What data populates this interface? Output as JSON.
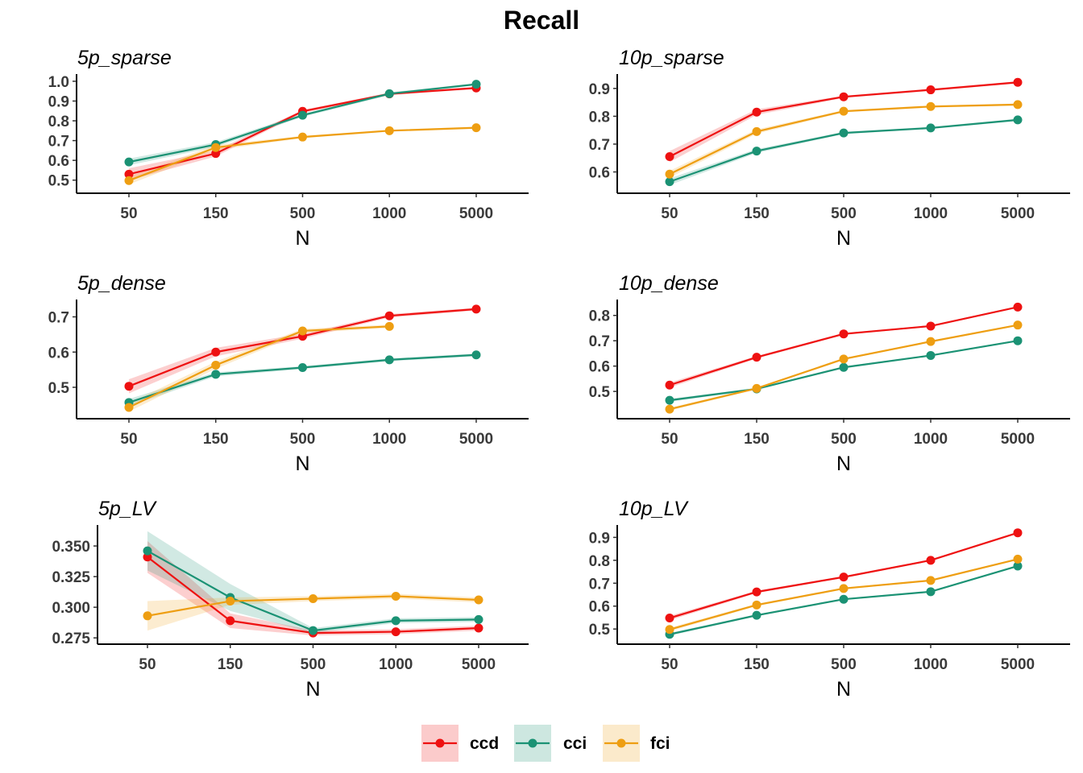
{
  "title": "Recall",
  "legend": {
    "position": "bottom",
    "entries": [
      {
        "name": "ccd",
        "color": "#EE1111"
      },
      {
        "name": "cci",
        "color": "#1B9274"
      },
      {
        "name": "fci",
        "color": "#EE9E12"
      }
    ]
  },
  "chart_data": [
    {
      "type": "line",
      "title": "5p_sparse",
      "xlabel": "N",
      "ylabel": "",
      "categories": [
        "50",
        "150",
        "500",
        "1000",
        "5000"
      ],
      "ylim": [
        0.45,
        1.02
      ],
      "yticks": [
        0.5,
        0.6,
        0.7,
        0.8,
        0.9,
        1.0
      ],
      "ytick_labels": [
        "0.5",
        "0.6",
        "0.7",
        "0.8",
        "0.9",
        "1.0"
      ],
      "grid": false,
      "series": [
        {
          "name": "ccd",
          "values": [
            0.53,
            0.635,
            0.848,
            0.936,
            0.966
          ],
          "lower": [
            0.5,
            0.62,
            0.84,
            0.93,
            0.96
          ],
          "upper": [
            0.56,
            0.65,
            0.855,
            0.942,
            0.972
          ]
        },
        {
          "name": "cci",
          "values": [
            0.592,
            0.68,
            0.828,
            0.937,
            0.985
          ],
          "lower": [
            0.575,
            0.668,
            0.82,
            0.93,
            0.98
          ],
          "upper": [
            0.609,
            0.692,
            0.836,
            0.944,
            0.99
          ]
        },
        {
          "name": "fci",
          "values": [
            0.498,
            0.665,
            0.718,
            0.75,
            0.765
          ],
          "lower": [
            0.478,
            0.652,
            0.712,
            0.745,
            0.76
          ],
          "upper": [
            0.518,
            0.678,
            0.724,
            0.755,
            0.77
          ]
        }
      ]
    },
    {
      "type": "line",
      "title": "10p_sparse",
      "xlabel": "N",
      "ylabel": "",
      "categories": [
        "50",
        "150",
        "500",
        "1000",
        "5000"
      ],
      "ylim": [
        0.535,
        0.94
      ],
      "yticks": [
        0.6,
        0.7,
        0.8,
        0.9
      ],
      "ytick_labels": [
        "0.6",
        "0.7",
        "0.8",
        "0.9"
      ],
      "grid": false,
      "series": [
        {
          "name": "ccd",
          "values": [
            0.655,
            0.815,
            0.87,
            0.895,
            0.922
          ],
          "lower": [
            0.635,
            0.805,
            0.866,
            0.891,
            0.918
          ],
          "upper": [
            0.675,
            0.825,
            0.874,
            0.899,
            0.926
          ]
        },
        {
          "name": "cci",
          "values": [
            0.565,
            0.675,
            0.74,
            0.758,
            0.787
          ],
          "lower": [
            0.553,
            0.668,
            0.736,
            0.754,
            0.783
          ],
          "upper": [
            0.577,
            0.682,
            0.744,
            0.762,
            0.791
          ]
        },
        {
          "name": "fci",
          "values": [
            0.592,
            0.745,
            0.818,
            0.835,
            0.842
          ],
          "lower": [
            0.58,
            0.737,
            0.814,
            0.831,
            0.838
          ],
          "upper": [
            0.604,
            0.753,
            0.822,
            0.839,
            0.846
          ]
        }
      ]
    },
    {
      "type": "line",
      "title": "5p_dense",
      "xlabel": "N",
      "ylabel": "",
      "categories": [
        "50",
        "150",
        "500",
        "1000",
        "5000"
      ],
      "ylim": [
        0.42,
        0.74
      ],
      "yticks": [
        0.5,
        0.6,
        0.7
      ],
      "ytick_labels": [
        "0.5",
        "0.6",
        "0.7"
      ],
      "grid": false,
      "series": [
        {
          "name": "ccd",
          "values": [
            0.503,
            0.6,
            0.645,
            0.703,
            0.722
          ],
          "lower": [
            0.483,
            0.588,
            0.638,
            0.698,
            0.718
          ],
          "upper": [
            0.523,
            0.612,
            0.652,
            0.708,
            0.726
          ]
        },
        {
          "name": "cci",
          "values": [
            0.457,
            0.537,
            0.556,
            0.578,
            0.592
          ],
          "lower": [
            0.447,
            0.531,
            0.552,
            0.574,
            0.588
          ],
          "upper": [
            0.467,
            0.543,
            0.56,
            0.582,
            0.596
          ]
        },
        {
          "name": "fci",
          "values": [
            0.443,
            0.563,
            0.66,
            0.673,
            null
          ],
          "lower": [
            0.431,
            0.553,
            0.654,
            0.668,
            null
          ],
          "upper": [
            0.455,
            0.573,
            0.666,
            0.678,
            null
          ]
        }
      ]
    },
    {
      "type": "line",
      "title": "10p_dense",
      "xlabel": "N",
      "ylabel": "",
      "categories": [
        "50",
        "150",
        "500",
        "1000",
        "5000"
      ],
      "ylim": [
        0.405,
        0.85
      ],
      "yticks": [
        0.5,
        0.6,
        0.7,
        0.8
      ],
      "ytick_labels": [
        "0.5",
        "0.6",
        "0.7",
        "0.8"
      ],
      "grid": false,
      "series": [
        {
          "name": "ccd",
          "values": [
            0.525,
            0.635,
            0.727,
            0.758,
            0.833
          ],
          "lower": [
            0.515,
            0.63,
            0.723,
            0.755,
            0.83
          ],
          "upper": [
            0.535,
            0.64,
            0.731,
            0.761,
            0.836
          ]
        },
        {
          "name": "cci",
          "values": [
            0.465,
            0.51,
            0.595,
            0.642,
            0.7
          ],
          "lower": [
            0.459,
            0.506,
            0.591,
            0.639,
            0.697
          ],
          "upper": [
            0.471,
            0.514,
            0.599,
            0.645,
            0.703
          ]
        },
        {
          "name": "fci",
          "values": [
            0.43,
            0.512,
            0.628,
            0.697,
            0.762
          ],
          "lower": [
            0.424,
            0.508,
            0.624,
            0.694,
            0.759
          ],
          "upper": [
            0.436,
            0.516,
            0.632,
            0.7,
            0.765
          ]
        }
      ]
    },
    {
      "type": "line",
      "title": "5p_LV",
      "xlabel": "N",
      "ylabel": "",
      "categories": [
        "50",
        "150",
        "500",
        "1000",
        "5000"
      ],
      "ylim": [
        0.2725,
        0.3645
      ],
      "yticks": [
        0.275,
        0.3,
        0.325,
        0.35
      ],
      "ytick_labels": [
        "0.275",
        "0.300",
        "0.325",
        "0.350"
      ],
      "grid": false,
      "series": [
        {
          "name": "ccd",
          "values": [
            0.341,
            0.289,
            0.279,
            0.28,
            0.283
          ],
          "lower": [
            0.328,
            0.283,
            0.277,
            0.278,
            0.281
          ],
          "upper": [
            0.354,
            0.295,
            0.281,
            0.282,
            0.285
          ]
        },
        {
          "name": "cci",
          "values": [
            0.346,
            0.308,
            0.281,
            0.289,
            0.29
          ],
          "lower": [
            0.33,
            0.297,
            0.279,
            0.287,
            0.288
          ],
          "upper": [
            0.362,
            0.319,
            0.283,
            0.291,
            0.292
          ]
        },
        {
          "name": "fci",
          "values": [
            0.293,
            0.305,
            0.307,
            0.309,
            0.306
          ],
          "lower": [
            0.281,
            0.302,
            0.305,
            0.307,
            0.304
          ],
          "upper": [
            0.305,
            0.308,
            0.309,
            0.311,
            0.308
          ]
        }
      ]
    },
    {
      "type": "line",
      "title": "10p_LV",
      "xlabel": "N",
      "ylabel": "",
      "categories": [
        "50",
        "150",
        "500",
        "1000",
        "5000"
      ],
      "ylim": [
        0.448,
        0.94
      ],
      "yticks": [
        0.5,
        0.6,
        0.7,
        0.8,
        0.9
      ],
      "ytick_labels": [
        "0.5",
        "0.6",
        "0.7",
        "0.8",
        "0.9"
      ],
      "grid": false,
      "series": [
        {
          "name": "ccd",
          "values": [
            0.548,
            0.662,
            0.727,
            0.8,
            0.92
          ],
          "lower": [
            0.538,
            0.657,
            0.723,
            0.797,
            0.917
          ],
          "upper": [
            0.558,
            0.667,
            0.731,
            0.803,
            0.923
          ]
        },
        {
          "name": "cci",
          "values": [
            0.477,
            0.56,
            0.63,
            0.663,
            0.775
          ],
          "lower": [
            0.471,
            0.556,
            0.627,
            0.66,
            0.772
          ],
          "upper": [
            0.483,
            0.564,
            0.633,
            0.666,
            0.778
          ]
        },
        {
          "name": "fci",
          "values": [
            0.498,
            0.605,
            0.677,
            0.712,
            0.805
          ],
          "lower": [
            0.49,
            0.6,
            0.673,
            0.709,
            0.802
          ],
          "upper": [
            0.506,
            0.61,
            0.681,
            0.715,
            0.808
          ]
        }
      ]
    }
  ]
}
